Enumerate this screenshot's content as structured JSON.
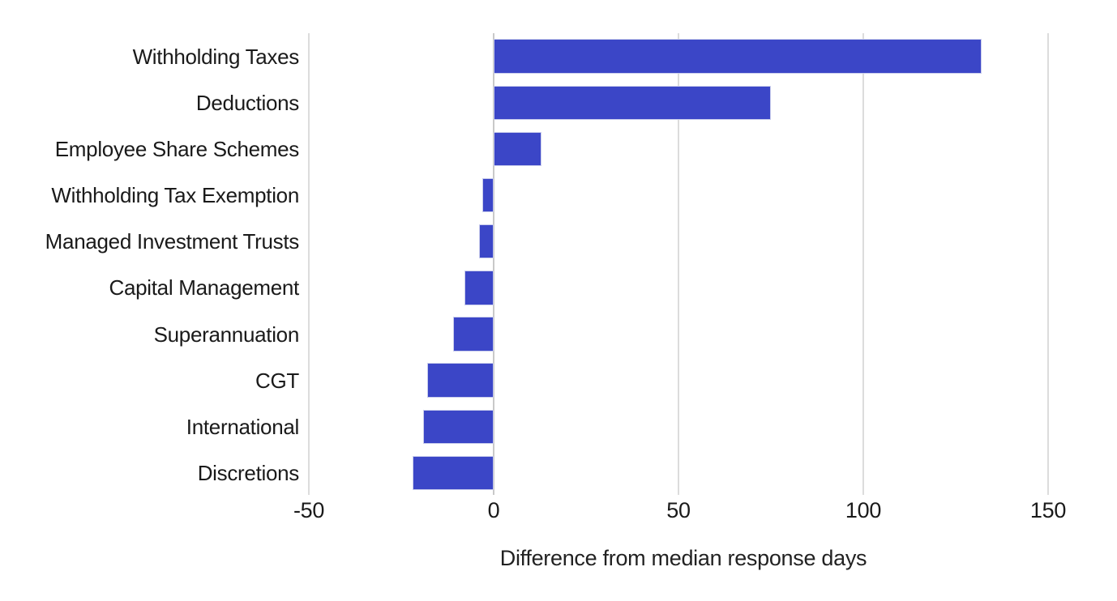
{
  "chart_data": {
    "type": "bar",
    "orientation": "horizontal",
    "title": "",
    "xlabel": "Difference from median response days",
    "ylabel": "",
    "categories": [
      "Withholding Taxes",
      "Deductions",
      "Employee Share Schemes",
      "Withholding Tax Exemption",
      "Managed Investment Trusts",
      "Capital Management",
      "Superannuation",
      "CGT",
      "International",
      "Discretions"
    ],
    "values": [
      132,
      75,
      13,
      -3,
      -4,
      -8,
      -11,
      -18,
      -19,
      -22
    ],
    "xlim": [
      -50,
      158
    ],
    "xticks": [
      -50,
      0,
      50,
      100,
      150
    ],
    "grid": "vertical-gridlines-on",
    "legend": "none"
  },
  "palette": {
    "bar": "#3B46C7",
    "bar_border": "#C9CDEC",
    "gridline": "#DCDCDC",
    "zero_line": "#C9C9C9",
    "text": "#1A1A1A",
    "title_text": "#222222",
    "background": "#FFFFFF"
  }
}
